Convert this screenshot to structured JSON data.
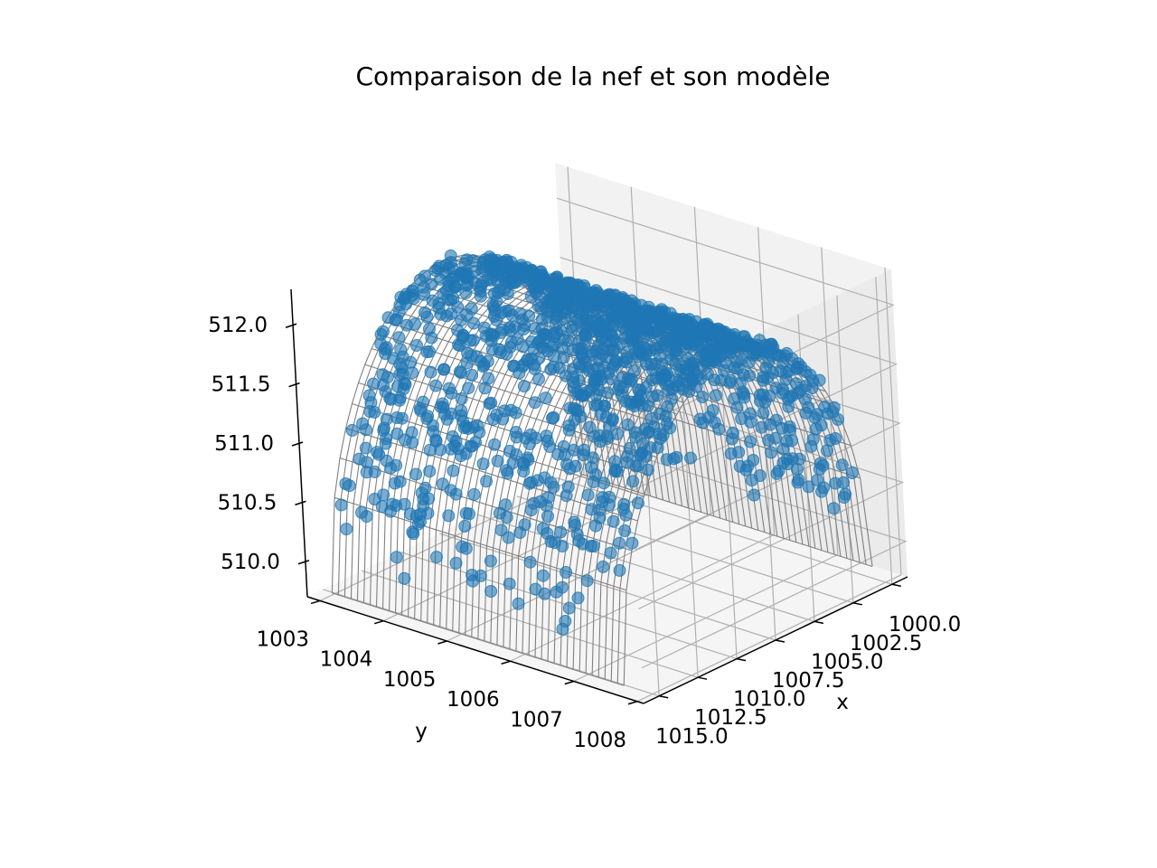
{
  "chart_data": {
    "type": "scatter",
    "subtype": "3d-scatter-with-wireframe-surface",
    "title": "Comparaison de la nef et son modèle",
    "xlabel": "x",
    "ylabel": "y",
    "zlabel": "",
    "x_ticks": [
      "1000.0",
      "1002.5",
      "1005.0",
      "1007.5",
      "1010.0",
      "1012.5",
      "1015.0"
    ],
    "y_ticks": [
      "1003",
      "1004",
      "1005",
      "1006",
      "1007",
      "1008"
    ],
    "z_ticks": [
      "510.0",
      "510.5",
      "511.0",
      "511.5",
      "512.0"
    ],
    "xlim": [
      999,
      1016
    ],
    "ylim": [
      1002.8,
      1008.1
    ],
    "zlim": [
      509.7,
      512.3
    ],
    "grid": true,
    "series": [
      {
        "kind": "points",
        "color": "#1f77b4",
        "opacity": 0.6,
        "description_values": {
          "x_range": [
            999.8,
            1015.2
          ],
          "y_range": [
            1003.2,
            1007.8
          ],
          "z_range": [
            510.1,
            512.1
          ],
          "count_approx": 3000
        }
      },
      {
        "kind": "wireframe-surface",
        "color": "#808080",
        "axis_center_y": 1005.5,
        "radius": 2.3,
        "base_z": 509.8,
        "crown_z": 512.1
      }
    ]
  }
}
